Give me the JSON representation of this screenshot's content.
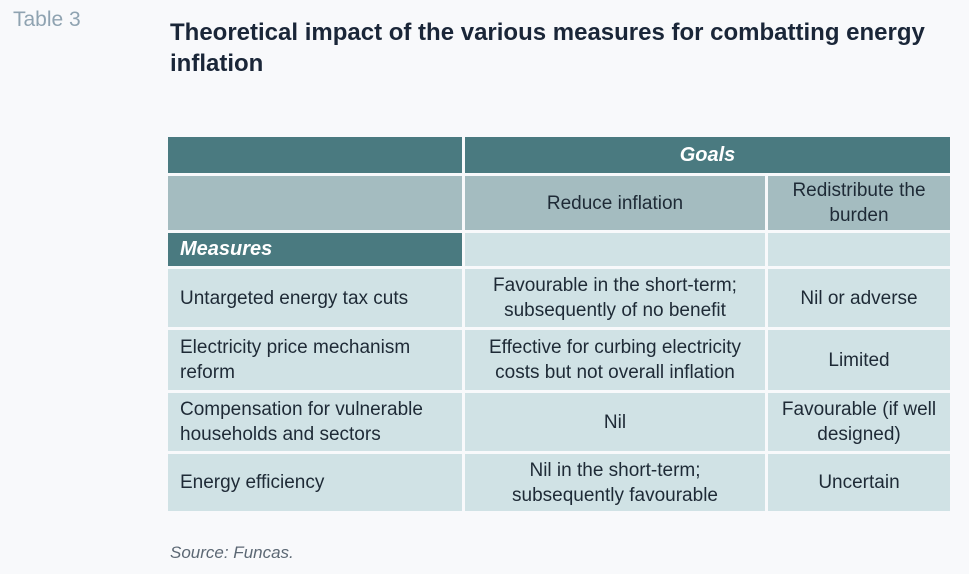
{
  "table_label": "Table 3",
  "title": "Theoretical impact of the various measures for combatting energy inflation",
  "table": {
    "goals_header": "Goals",
    "columns": [
      "Reduce inflation",
      "Redistribute the burden"
    ],
    "measures_header": "Measures",
    "rows": [
      {
        "measure": "Untargeted energy tax cuts",
        "reduce_inflation": "Favourable in the short-term; subsequently of no benefit",
        "redistribute": "Nil or adverse"
      },
      {
        "measure": "Electricity price mechanism reform",
        "reduce_inflation": "Effective for curbing electricity costs but not overall inflation",
        "redistribute": "Limited"
      },
      {
        "measure": "Compensation for vulnerable households and sectors",
        "reduce_inflation": "Nil",
        "redistribute": "Favourable (if well designed)"
      },
      {
        "measure": "Energy efficiency",
        "reduce_inflation": "Nil in the short-term; subsequently favourable",
        "redistribute": "Uncertain"
      }
    ]
  },
  "source": "Source: Funcas.",
  "colors": {
    "header_dark": "#4a7a80",
    "header_mid": "#a4bcc0",
    "cell_light": "#d0e2e5",
    "title_text": "#1a2638",
    "label_text": "#8fa3b1"
  }
}
